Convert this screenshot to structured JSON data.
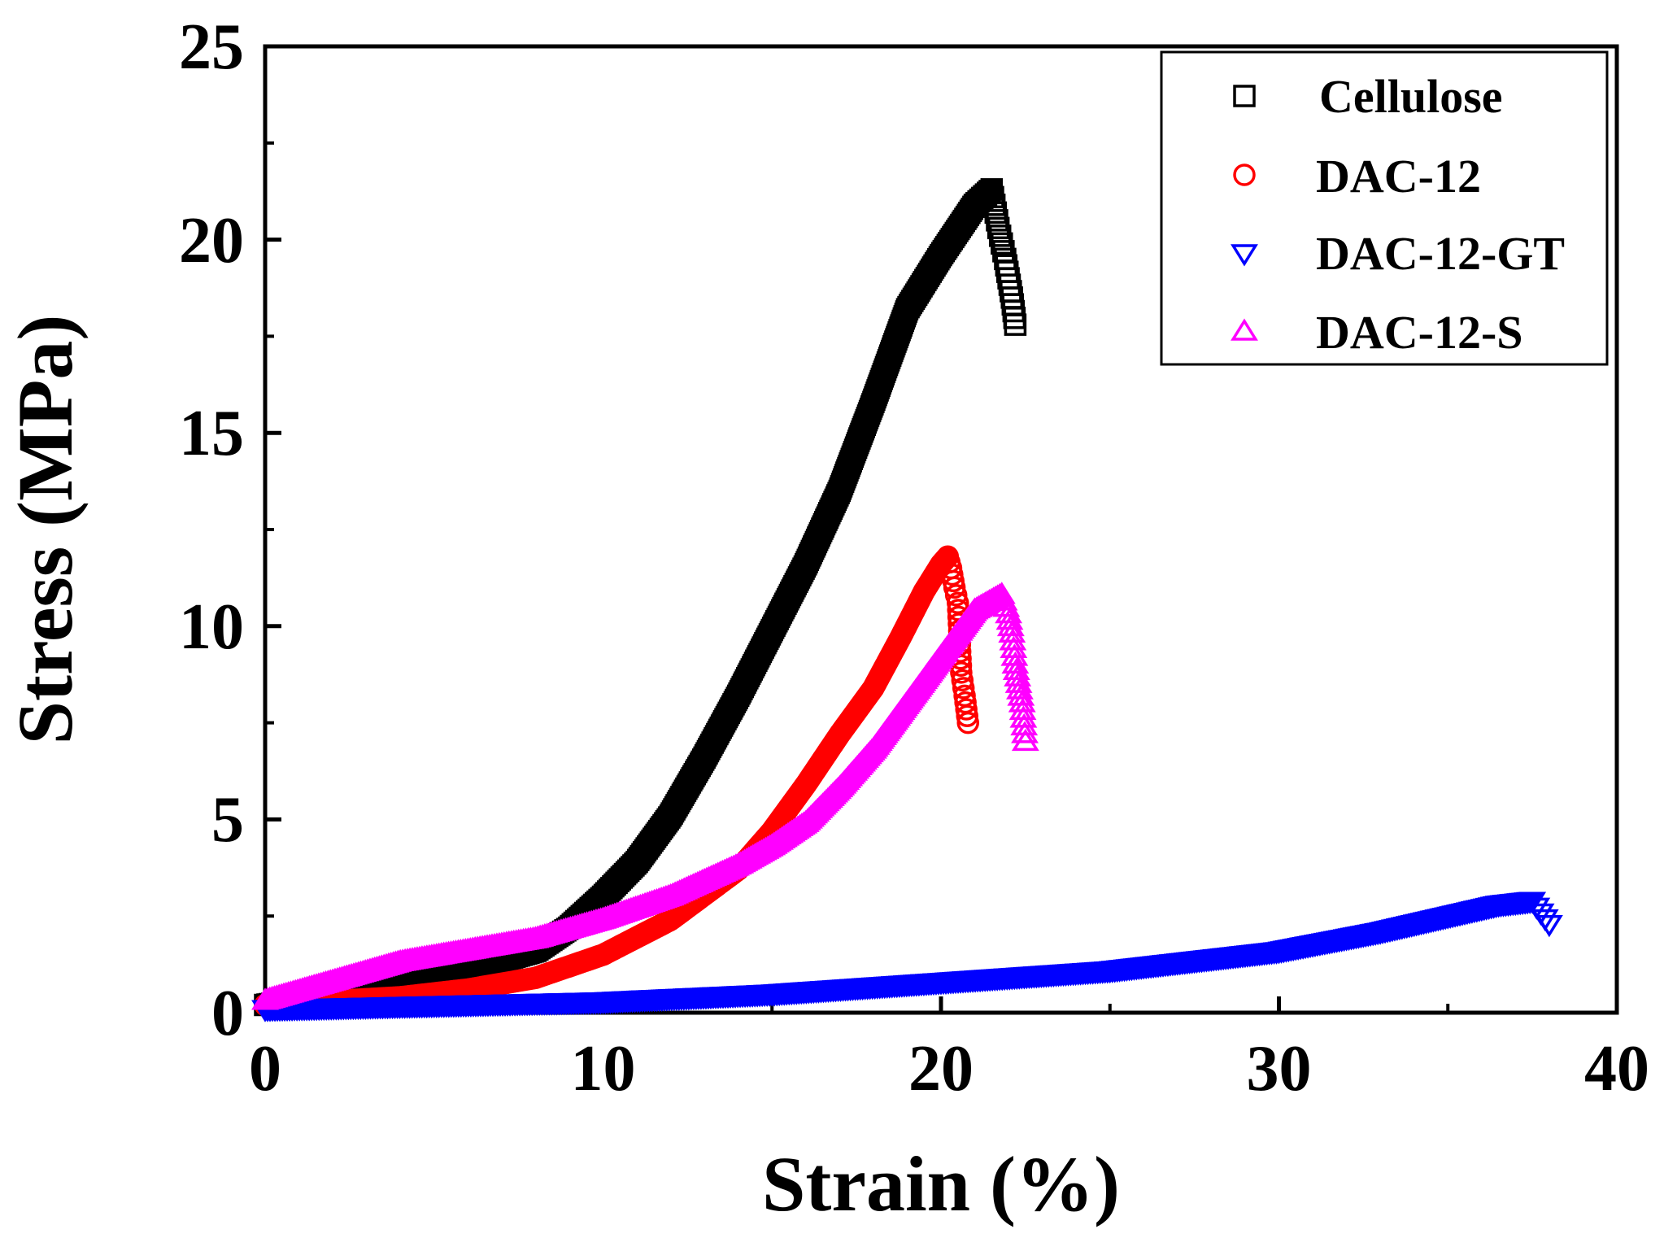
{
  "chart_data": {
    "type": "scatter",
    "title": "",
    "xlabel": "Strain (%)",
    "ylabel": "Stress (MPa)",
    "xlim": [
      0,
      40
    ],
    "ylim": [
      0,
      25
    ],
    "xticks": [
      0,
      10,
      20,
      30,
      40
    ],
    "xtick_labels": [
      "0",
      "10",
      "20",
      "30",
      "40"
    ],
    "yticks": [
      0,
      5,
      10,
      15,
      20,
      25
    ],
    "ytick_labels": [
      "0",
      "5",
      "10",
      "15",
      "20",
      "25"
    ],
    "grid": false,
    "legend_position": "top-right",
    "series": [
      {
        "name": "Cellulose",
        "marker": "square",
        "color": "#000000",
        "x": [
          0,
          2,
          4,
          6,
          8,
          9,
          10,
          11,
          12,
          13,
          14,
          15,
          16,
          17,
          18,
          19,
          20,
          21,
          21.5,
          21.7,
          21.9,
          22.0,
          22.1,
          22.2
        ],
        "y": [
          0.2,
          0.5,
          0.8,
          1.1,
          1.6,
          2.2,
          3.0,
          3.9,
          5.1,
          6.6,
          8.2,
          9.9,
          11.6,
          13.5,
          15.8,
          18.2,
          19.6,
          20.9,
          21.3,
          20.3,
          19.5,
          19.0,
          18.5,
          17.8
        ]
      },
      {
        "name": "DAC-12",
        "marker": "circle",
        "color": "#ff0000",
        "x": [
          0,
          2,
          4,
          6,
          8,
          10,
          12,
          14,
          15,
          16,
          17,
          18,
          18.8,
          19.5,
          20.0,
          20.2,
          20.3,
          20.4,
          20.5,
          20.6,
          20.7,
          20.8
        ],
        "y": [
          0.2,
          0.3,
          0.4,
          0.6,
          0.9,
          1.5,
          2.4,
          3.7,
          4.7,
          5.9,
          7.2,
          8.4,
          9.7,
          10.9,
          11.6,
          11.8,
          11.5,
          11.0,
          10.6,
          8.8,
          8.2,
          7.5
        ]
      },
      {
        "name": "DAC-12-GT",
        "marker": "triangle-down",
        "color": "#0000ff",
        "x": [
          0,
          5,
          10,
          15,
          20,
          25,
          30,
          33,
          35,
          36.5,
          37.5,
          38.0
        ],
        "y": [
          0.1,
          0.2,
          0.3,
          0.5,
          0.8,
          1.1,
          1.6,
          2.1,
          2.5,
          2.8,
          2.9,
          2.3
        ]
      },
      {
        "name": "DAC-12-S",
        "marker": "triangle-up",
        "color": "#ff00ff",
        "x": [
          0,
          2,
          4,
          6,
          8,
          10,
          12,
          14,
          15,
          16,
          17,
          18,
          19,
          20,
          21,
          21.8,
          22.0,
          22.1,
          22.2,
          22.3,
          22.4,
          22.5
        ],
        "y": [
          0.3,
          0.8,
          1.3,
          1.6,
          1.9,
          2.4,
          3.0,
          3.8,
          4.3,
          4.9,
          5.8,
          6.8,
          8.0,
          9.2,
          10.4,
          10.8,
          10.3,
          9.8,
          9.0,
          8.5,
          8.0,
          7.0
        ]
      }
    ]
  }
}
